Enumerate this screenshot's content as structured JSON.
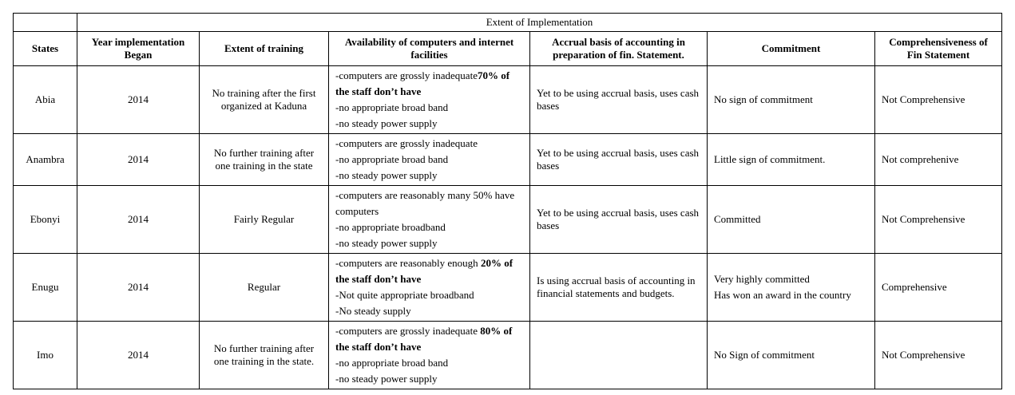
{
  "header": {
    "group_title": "Extent of Implementation",
    "columns": [
      "States",
      "Year implementation Began",
      "Extent of training",
      "Availability of computers and internet facilities",
      "Accrual basis of accounting in preparation of fin. Statement.",
      "Commitment",
      "Comprehensiveness of Fin Statement"
    ]
  },
  "rows": [
    {
      "state": "Abia",
      "year": "2014",
      "training": "No training after the first organized at Kaduna",
      "availability": {
        "first": "-computers are grossly inadequate",
        "first_bold": "70% of the staff don’t have",
        "lines": [
          "-no appropriate broad band",
          "-no steady power supply"
        ]
      },
      "accrual": "Yet to be using accrual basis, uses cash bases",
      "commitment": [
        "No sign of commitment"
      ],
      "comprehensiveness": "Not Comprehensive"
    },
    {
      "state": "Anambra",
      "year": "2014",
      "training": "No further training after one training in the state",
      "availability": {
        "first": "-computers are grossly inadequate",
        "first_bold": "",
        "lines": [
          "-no appropriate broad band",
          "-no steady power supply"
        ]
      },
      "accrual": "Yet to be using accrual basis, uses cash bases",
      "commitment": [
        "Little sign of commitment."
      ],
      "comprehensiveness": "Not comprehenive"
    },
    {
      "state": "Ebonyi",
      "year": "2014",
      "training": "Fairly Regular",
      "availability": {
        "first": "-computers are reasonably many 50% have computers",
        "first_bold": "",
        "lines": [
          "-no appropriate broadband",
          "-no steady power supply"
        ]
      },
      "accrual": "Yet to be using accrual basis, uses cash bases",
      "commitment": [
        "Committed"
      ],
      "comprehensiveness": "Not Comprehensive"
    },
    {
      "state": "Enugu",
      "year": "2014",
      "training": "Regular",
      "availability": {
        "first": "-computers are reasonably enough ",
        "first_bold": "20% of the staff don’t have",
        "lines": [
          "-Not quite appropriate broadband",
          "-No steady supply"
        ]
      },
      "accrual": "Is using accrual basis of accounting in financial statements and budgets.",
      "commitment": [
        "Very highly committed",
        "Has won an award in the country"
      ],
      "comprehensiveness": "Comprehensive"
    },
    {
      "state": "Imo",
      "year": "2014",
      "training": "No further training after one training in the state.",
      "availability": {
        "first": "-computers are grossly inadequate ",
        "first_bold": "80% of the staff don’t have",
        "lines": [
          "-no appropriate broad band",
          "-no steady power supply"
        ]
      },
      "accrual": "",
      "commitment": [
        "No Sign of commitment"
      ],
      "comprehensiveness": "Not Comprehensive"
    }
  ]
}
